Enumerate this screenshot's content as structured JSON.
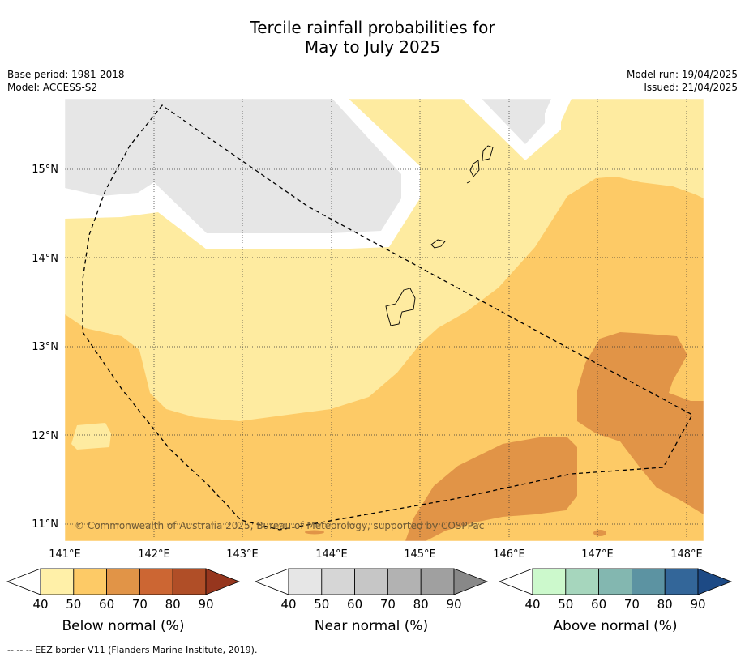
{
  "title_line1": "Tercile rainfall probabilities for",
  "title_line2": "May to July 2025",
  "meta": {
    "base_period": "Base period: 1981-2018",
    "model": "Model: ACCESS-S2",
    "model_run": "Model run: 19/04/2025",
    "issued": "Issued: 21/04/2025"
  },
  "map": {
    "lat_labels": [
      "15°N",
      "14°N",
      "13°N",
      "12°N",
      "11°N"
    ],
    "lon_labels": [
      "141°E",
      "142°E",
      "143°E",
      "144°E",
      "145°E",
      "146°E",
      "147°E",
      "148°E"
    ],
    "copyright": "© Commonwealth of Australia 2025, Bureau of Meteorology, supported by COSPPac",
    "colors": {
      "land_mask": "#e6e6e6",
      "below_40_50": "#feeba0",
      "below_50_60": "#fdca66",
      "below_60_70": "#e19447"
    }
  },
  "legends": [
    {
      "title": "Below normal (%)",
      "ticks": [
        "40",
        "50",
        "60",
        "70",
        "80",
        "90"
      ],
      "colors": [
        "#fff0a8",
        "#fdca66",
        "#e19447",
        "#cc6633",
        "#b04e27",
        "#96361e"
      ]
    },
    {
      "title": "Near normal (%)",
      "ticks": [
        "40",
        "50",
        "60",
        "70",
        "80",
        "90"
      ],
      "colors": [
        "#e6e6e6",
        "#d6d6d6",
        "#c6c6c6",
        "#b2b2b2",
        "#a0a0a0",
        "#888888"
      ]
    },
    {
      "title": "Above normal (%)",
      "ticks": [
        "40",
        "50",
        "60",
        "70",
        "80",
        "90"
      ],
      "colors": [
        "#ccf9cc",
        "#a6d6bd",
        "#83b7b0",
        "#5c93a2",
        "#336699",
        "#1d4a85"
      ]
    }
  ],
  "footer": "--  --  -- EEZ border V11 (Flanders Marine Institute, 2019)."
}
